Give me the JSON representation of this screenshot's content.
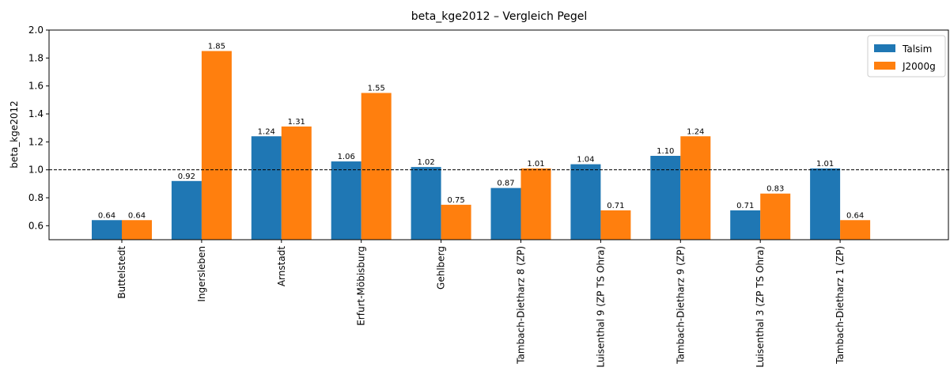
{
  "chart_data": {
    "type": "bar",
    "title": "beta_kge2012 – Vergleich  Pegel",
    "y_label": "beta_kge2012",
    "categories": [
      "Buttelstedt",
      "Ingersleben",
      "Arnstadt",
      "Erfurt-Möbisburg",
      "Gehlberg",
      "Tambach-Dietharz 8 (ZP)",
      "Luisenthal 9 (ZP TS Ohra)",
      "Tambach-Dietharz 9 (ZP)",
      "Luisenthal 3 (ZP TS Ohra)",
      "Tambach-Dietharz 1 (ZP)"
    ],
    "series": [
      {
        "name": "Talsim",
        "color": "#1f77b4",
        "values": [
          0.64,
          0.92,
          1.24,
          1.06,
          1.02,
          0.87,
          1.04,
          1.1,
          0.71,
          1.01
        ],
        "value_labels": [
          "0.64",
          "0.92",
          "1.24",
          "1.06",
          "1.02",
          "0.87",
          "1.04",
          "1.10",
          "0.71",
          "1.01"
        ]
      },
      {
        "name": "J2000g",
        "color": "#ff7f0e",
        "values": [
          0.64,
          1.85,
          1.31,
          1.55,
          0.75,
          1.01,
          0.71,
          1.24,
          0.83,
          0.64
        ],
        "value_labels": [
          "0.64",
          "1.85",
          "1.31",
          "1.55",
          "0.75",
          "1.01",
          "0.71",
          "1.24",
          "0.83",
          "0.64"
        ]
      }
    ],
    "ylim": [
      0.5,
      2.0
    ],
    "yticks": [
      0.6,
      0.8,
      {
        "value": 1.0,
        "label": "1.0"
      },
      1.2,
      1.4,
      1.6,
      1.8,
      {
        "value": 2.0,
        "label": "2.0"
      }
    ],
    "reference_line": 1.0,
    "legend": "upper right"
  }
}
